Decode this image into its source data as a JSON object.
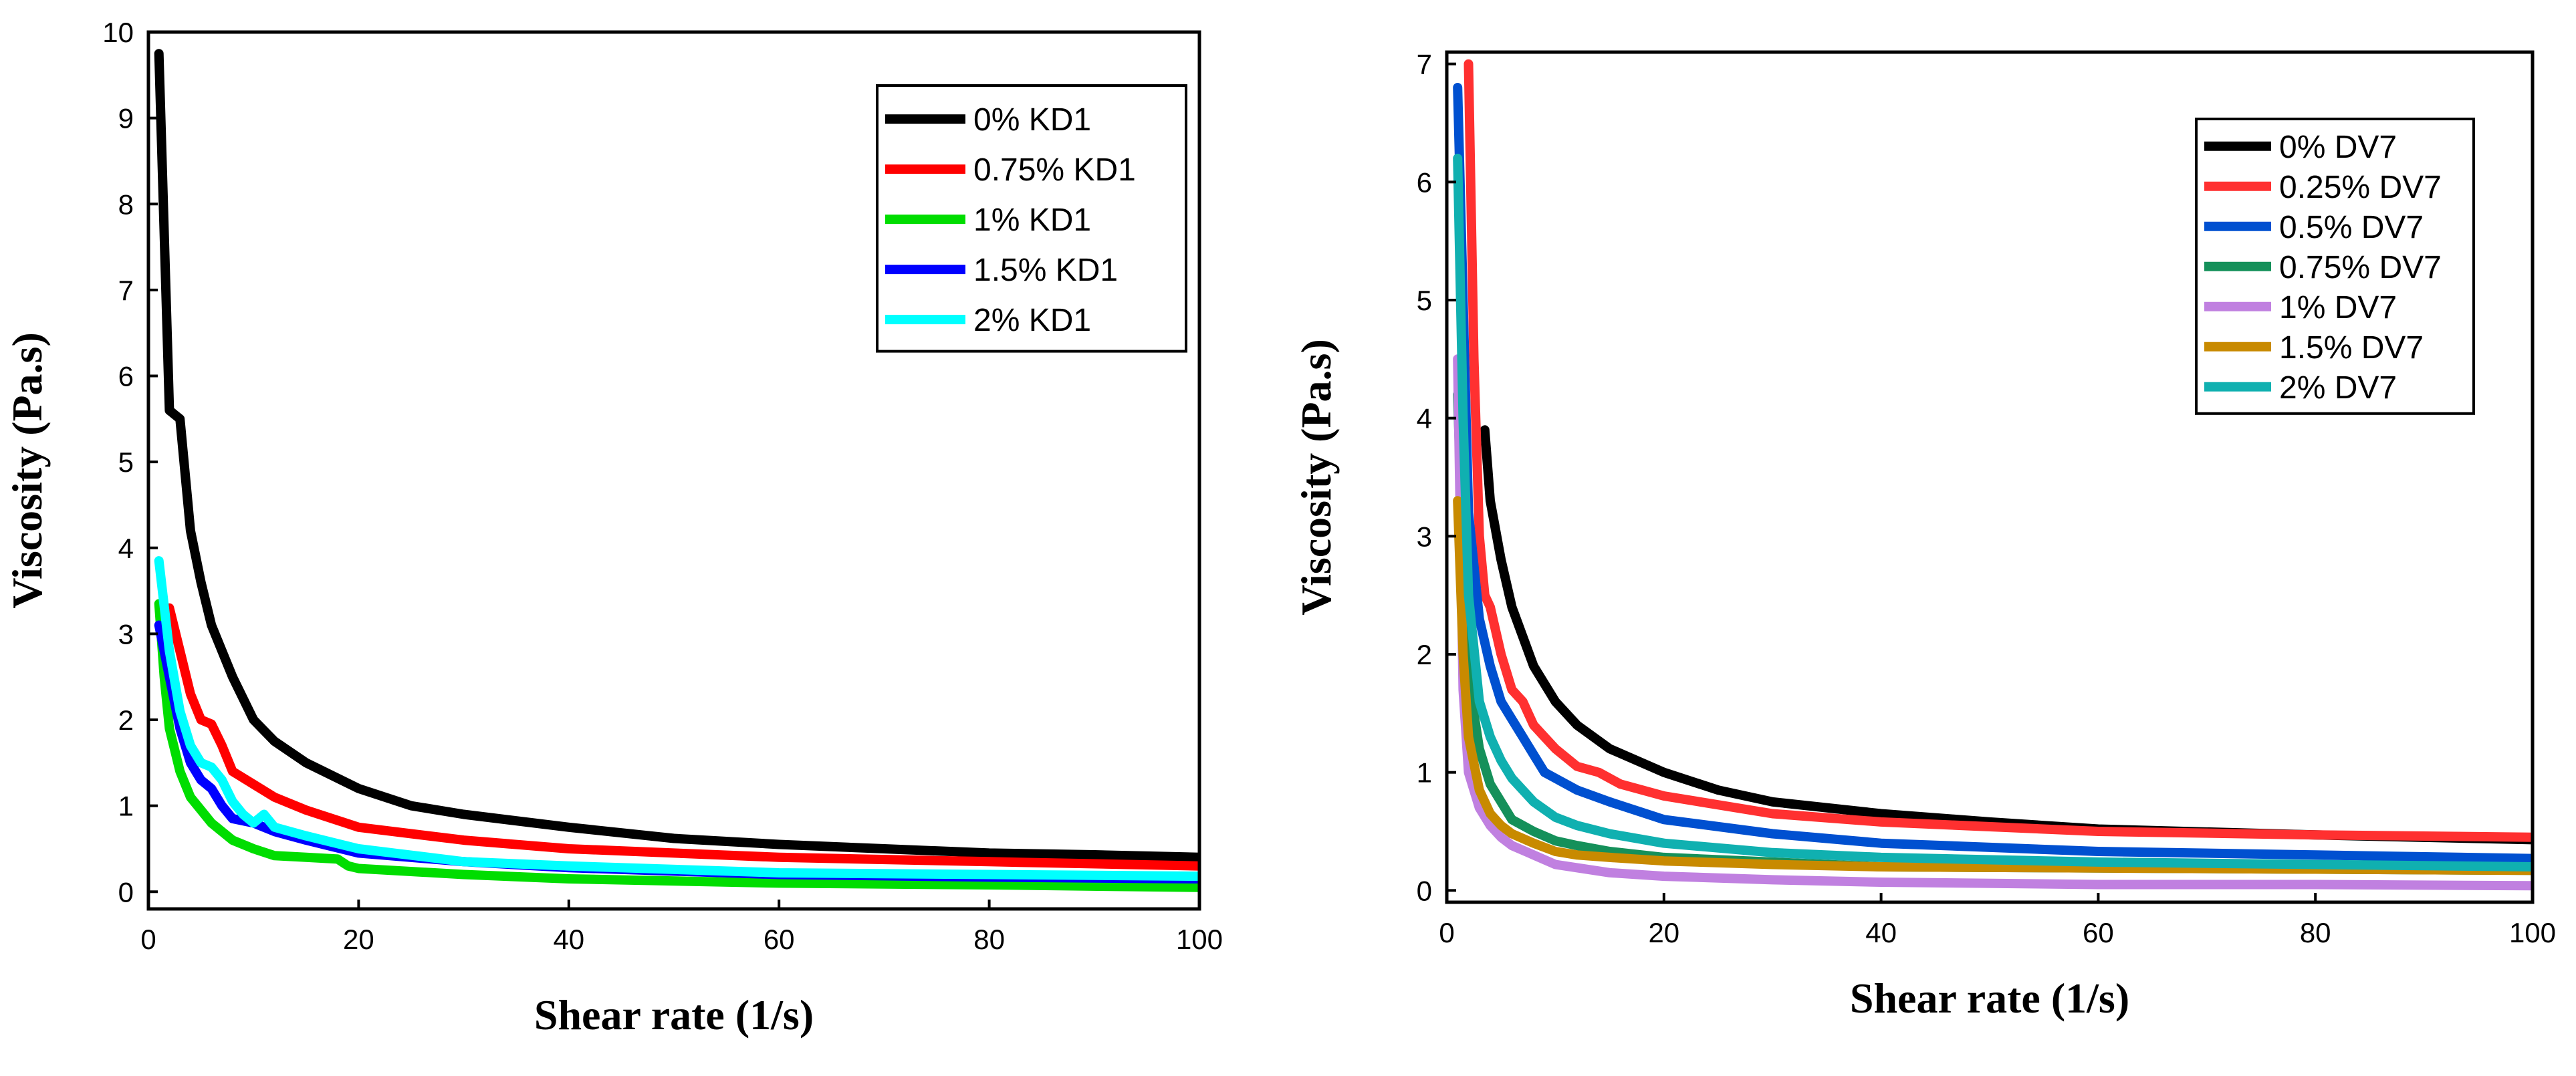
{
  "chart_data": [
    {
      "type": "line",
      "title": "",
      "xlabel": "Shear rate (1/s)",
      "ylabel": "Viscosity (Pa.s)",
      "xlim": [
        0,
        100
      ],
      "ylim": [
        -0.2,
        10
      ],
      "xticks": [
        0,
        20,
        40,
        60,
        80,
        100
      ],
      "yticks": [
        0,
        1,
        2,
        3,
        4,
        5,
        6,
        7,
        8,
        9,
        10
      ],
      "grid": false,
      "legend_position": "top-right",
      "series": [
        {
          "name": "0% KD1",
          "color": "#000000",
          "x": [
            1,
            2,
            2.5,
            3,
            4,
            5,
            6,
            8,
            10,
            12,
            15,
            20,
            25,
            30,
            40,
            50,
            60,
            70,
            80,
            90,
            100
          ],
          "y": [
            9.75,
            5.6,
            5.55,
            5.5,
            4.2,
            3.6,
            3.1,
            2.5,
            2.0,
            1.75,
            1.5,
            1.2,
            1.0,
            0.9,
            0.75,
            0.62,
            0.55,
            0.5,
            0.45,
            0.43,
            0.4
          ]
        },
        {
          "name": "0.75% KD1",
          "color": "#ff0000",
          "x": [
            2,
            3,
            4,
            5,
            6,
            7,
            8,
            10,
            12,
            15,
            20,
            30,
            40,
            60,
            80,
            100
          ],
          "y": [
            3.3,
            2.8,
            2.3,
            2.0,
            1.95,
            1.7,
            1.4,
            1.25,
            1.1,
            0.95,
            0.75,
            0.6,
            0.5,
            0.4,
            0.35,
            0.3
          ]
        },
        {
          "name": "1% KD1",
          "color": "#00dd00",
          "x": [
            1,
            1.5,
            2,
            3,
            4,
            5,
            6,
            8,
            10,
            12,
            15,
            18,
            19,
            20,
            30,
            40,
            60,
            80,
            100
          ],
          "y": [
            3.35,
            2.5,
            1.9,
            1.4,
            1.1,
            0.95,
            0.8,
            0.6,
            0.5,
            0.42,
            0.4,
            0.38,
            0.3,
            0.27,
            0.2,
            0.15,
            0.1,
            0.08,
            0.05
          ]
        },
        {
          "name": "1.5% KD1",
          "color": "#0000ff",
          "x": [
            1,
            2,
            3,
            4,
            5,
            6,
            7,
            8,
            10,
            12,
            15,
            20,
            30,
            40,
            60,
            80,
            100
          ],
          "y": [
            3.1,
            2.5,
            1.9,
            1.5,
            1.3,
            1.2,
            1.0,
            0.85,
            0.8,
            0.7,
            0.6,
            0.45,
            0.35,
            0.28,
            0.2,
            0.17,
            0.15
          ]
        },
        {
          "name": "2% KD1",
          "color": "#00ffff",
          "x": [
            1,
            2,
            3,
            4,
            5,
            6,
            7,
            8,
            9,
            10,
            11,
            12,
            15,
            20,
            30,
            40,
            60,
            80,
            100
          ],
          "y": [
            3.85,
            2.8,
            2.1,
            1.7,
            1.5,
            1.45,
            1.3,
            1.05,
            0.9,
            0.8,
            0.9,
            0.75,
            0.65,
            0.5,
            0.35,
            0.3,
            0.22,
            0.2,
            0.18
          ]
        }
      ]
    },
    {
      "type": "line",
      "title": "",
      "xlabel": "Shear rate (1/s)",
      "ylabel": "Viscosity (Pa.s)",
      "xlim": [
        0,
        100
      ],
      "ylim": [
        -0.1,
        7.1
      ],
      "xticks": [
        0,
        20,
        40,
        60,
        80,
        100
      ],
      "yticks": [
        0,
        1,
        2,
        3,
        4,
        5,
        6,
        7
      ],
      "grid": false,
      "legend_position": "top-right",
      "series": [
        {
          "name": "0% DV7",
          "color": "#000000",
          "x": [
            3.5,
            4,
            5,
            6,
            8,
            10,
            12,
            15,
            20,
            25,
            30,
            40,
            50,
            60,
            80,
            100
          ],
          "y": [
            3.9,
            3.3,
            2.8,
            2.4,
            1.9,
            1.6,
            1.4,
            1.2,
            1.0,
            0.85,
            0.75,
            0.65,
            0.58,
            0.52,
            0.47,
            0.43
          ]
        },
        {
          "name": "0.25% DV7",
          "color": "#ff3030",
          "x": [
            2,
            2.5,
            3,
            3.5,
            4,
            5,
            6,
            7,
            8,
            9,
            10,
            12,
            14,
            16,
            20,
            30,
            40,
            60,
            80,
            100
          ],
          "y": [
            7.0,
            4.5,
            3.0,
            2.5,
            2.4,
            2.0,
            1.7,
            1.6,
            1.4,
            1.3,
            1.2,
            1.05,
            1.0,
            0.9,
            0.8,
            0.65,
            0.58,
            0.5,
            0.47,
            0.45
          ]
        },
        {
          "name": "0.5% DV7",
          "color": "#0050d0",
          "x": [
            1,
            1.5,
            2,
            3,
            4,
            5,
            6,
            7,
            8,
            9,
            10,
            12,
            15,
            20,
            30,
            40,
            60,
            80,
            100
          ],
          "y": [
            6.8,
            5.0,
            3.2,
            2.3,
            1.9,
            1.6,
            1.45,
            1.3,
            1.15,
            1.0,
            0.95,
            0.85,
            0.75,
            0.6,
            0.48,
            0.4,
            0.33,
            0.3,
            0.27
          ]
        },
        {
          "name": "0.75% DV7",
          "color": "#15905a",
          "x": [
            1,
            1.5,
            2,
            3,
            4,
            5,
            6,
            8,
            10,
            12,
            15,
            20,
            30,
            40,
            60,
            80,
            100
          ],
          "y": [
            4.2,
            2.8,
            1.8,
            1.2,
            0.9,
            0.75,
            0.6,
            0.5,
            0.42,
            0.38,
            0.33,
            0.28,
            0.24,
            0.2,
            0.19,
            0.18,
            0.17
          ]
        },
        {
          "name": "1% DV7",
          "color": "#c080e0",
          "x": [
            1,
            1.5,
            2,
            3,
            4,
            5,
            6,
            8,
            10,
            15,
            20,
            30,
            40,
            60,
            80,
            100
          ],
          "y": [
            4.5,
            1.7,
            1.0,
            0.7,
            0.55,
            0.45,
            0.38,
            0.3,
            0.22,
            0.15,
            0.12,
            0.09,
            0.07,
            0.05,
            0.05,
            0.04
          ]
        },
        {
          "name": "1.5% DV7",
          "color": "#c88a00",
          "x": [
            1,
            1.5,
            2,
            3,
            4,
            5,
            6,
            8,
            10,
            12,
            15,
            20,
            30,
            40,
            60,
            80,
            100
          ],
          "y": [
            3.3,
            2.0,
            1.3,
            0.85,
            0.65,
            0.55,
            0.48,
            0.4,
            0.33,
            0.3,
            0.28,
            0.25,
            0.22,
            0.2,
            0.19,
            0.18,
            0.17
          ]
        },
        {
          "name": "2% DV7",
          "color": "#10b0b0",
          "x": [
            1,
            1.5,
            2,
            3,
            4,
            5,
            6,
            8,
            10,
            12,
            15,
            20,
            30,
            40,
            60,
            80,
            100
          ],
          "y": [
            6.2,
            4.0,
            2.5,
            1.6,
            1.3,
            1.1,
            0.95,
            0.75,
            0.62,
            0.55,
            0.48,
            0.4,
            0.32,
            0.28,
            0.24,
            0.22,
            0.2
          ]
        }
      ]
    }
  ]
}
